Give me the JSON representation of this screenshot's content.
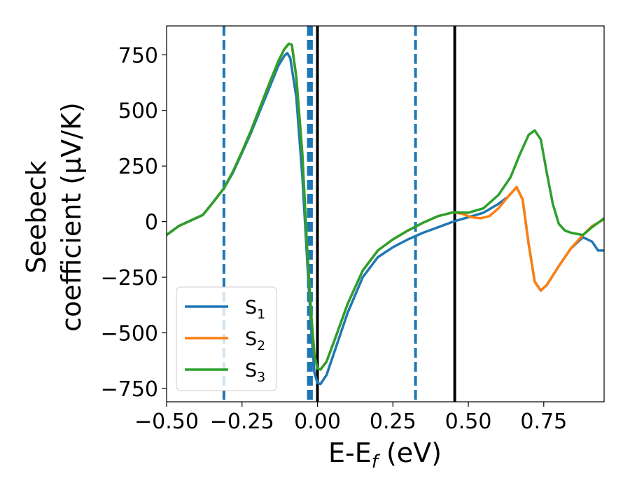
{
  "chart_data": {
    "type": "line",
    "xlabel": {
      "main": "E-E",
      "sub": "f",
      "unit": " (eV)"
    },
    "ylabel": {
      "line1": "Seebeck",
      "line2": "coefficient  (μV/K)"
    },
    "xlim": [
      -0.5,
      0.95
    ],
    "ylim": [
      -810,
      880
    ],
    "grid": false,
    "x_ticks": [
      -0.5,
      -0.25,
      0.0,
      0.25,
      0.5,
      0.75
    ],
    "x_tick_labels": [
      "−0.50",
      "−0.25",
      "0.00",
      "0.25",
      "0.50",
      "0.75"
    ],
    "y_ticks": [
      750,
      500,
      250,
      0,
      -250,
      -500,
      -750
    ],
    "y_tick_labels": [
      "750",
      "500",
      "250",
      "0",
      "−250",
      "−500",
      "−750"
    ],
    "legend": {
      "position": "lower-left"
    },
    "series": [
      {
        "name": "S",
        "sub": "1",
        "color": "#1f77b4",
        "points": [
          [
            -0.5,
            -60
          ],
          [
            -0.46,
            -20
          ],
          [
            -0.42,
            5
          ],
          [
            -0.38,
            30
          ],
          [
            -0.35,
            80
          ],
          [
            -0.31,
            150
          ],
          [
            -0.28,
            220
          ],
          [
            -0.25,
            310
          ],
          [
            -0.22,
            400
          ],
          [
            -0.19,
            500
          ],
          [
            -0.16,
            600
          ],
          [
            -0.13,
            700
          ],
          [
            -0.11,
            745
          ],
          [
            -0.1,
            758
          ],
          [
            -0.09,
            735
          ],
          [
            -0.07,
            560
          ],
          [
            -0.05,
            200
          ],
          [
            -0.035,
            -150
          ],
          [
            -0.02,
            -500
          ],
          [
            -0.01,
            -680
          ],
          [
            0.0,
            -725
          ],
          [
            0.01,
            -730
          ],
          [
            0.03,
            -690
          ],
          [
            0.06,
            -570
          ],
          [
            0.1,
            -410
          ],
          [
            0.15,
            -250
          ],
          [
            0.2,
            -160
          ],
          [
            0.25,
            -115
          ],
          [
            0.3,
            -80
          ],
          [
            0.35,
            -50
          ],
          [
            0.4,
            -25
          ],
          [
            0.45,
            0
          ],
          [
            0.5,
            20
          ],
          [
            0.55,
            40
          ],
          [
            0.6,
            80
          ],
          [
            0.63,
            110
          ],
          [
            0.66,
            155
          ],
          [
            0.68,
            100
          ],
          [
            0.7,
            -100
          ],
          [
            0.72,
            -270
          ],
          [
            0.74,
            -310
          ],
          [
            0.76,
            -285
          ],
          [
            0.8,
            -200
          ],
          [
            0.84,
            -120
          ],
          [
            0.88,
            -70
          ],
          [
            0.91,
            -90
          ],
          [
            0.93,
            -130
          ],
          [
            0.95,
            -130
          ]
        ]
      },
      {
        "name": "S",
        "sub": "2",
        "color": "#ff7f0e",
        "points": [
          [
            -0.5,
            -60
          ],
          [
            -0.46,
            -20
          ],
          [
            -0.42,
            5
          ],
          [
            -0.38,
            30
          ],
          [
            -0.35,
            80
          ],
          [
            -0.31,
            150
          ],
          [
            -0.28,
            225
          ],
          [
            -0.25,
            315
          ],
          [
            -0.22,
            410
          ],
          [
            -0.19,
            515
          ],
          [
            -0.16,
            620
          ],
          [
            -0.13,
            720
          ],
          [
            -0.11,
            775
          ],
          [
            -0.095,
            800
          ],
          [
            -0.085,
            795
          ],
          [
            -0.07,
            650
          ],
          [
            -0.05,
            300
          ],
          [
            -0.035,
            -100
          ],
          [
            -0.02,
            -430
          ],
          [
            -0.01,
            -600
          ],
          [
            0.0,
            -660
          ],
          [
            0.01,
            -665
          ],
          [
            0.03,
            -630
          ],
          [
            0.06,
            -520
          ],
          [
            0.1,
            -370
          ],
          [
            0.15,
            -220
          ],
          [
            0.2,
            -130
          ],
          [
            0.25,
            -80
          ],
          [
            0.3,
            -40
          ],
          [
            0.35,
            -5
          ],
          [
            0.4,
            25
          ],
          [
            0.45,
            42
          ],
          [
            0.48,
            35
          ],
          [
            0.51,
            20
          ],
          [
            0.54,
            15
          ],
          [
            0.57,
            25
          ],
          [
            0.6,
            60
          ],
          [
            0.63,
            110
          ],
          [
            0.66,
            155
          ],
          [
            0.68,
            100
          ],
          [
            0.7,
            -100
          ],
          [
            0.72,
            -270
          ],
          [
            0.74,
            -310
          ],
          [
            0.76,
            -285
          ],
          [
            0.8,
            -200
          ],
          [
            0.84,
            -120
          ],
          [
            0.88,
            -60
          ],
          [
            0.91,
            -20
          ],
          [
            0.95,
            10
          ]
        ]
      },
      {
        "name": "S",
        "sub": "3",
        "color": "#2ca02c",
        "points": [
          [
            -0.5,
            -60
          ],
          [
            -0.46,
            -20
          ],
          [
            -0.42,
            5
          ],
          [
            -0.38,
            30
          ],
          [
            -0.35,
            80
          ],
          [
            -0.31,
            150
          ],
          [
            -0.28,
            225
          ],
          [
            -0.25,
            315
          ],
          [
            -0.22,
            410
          ],
          [
            -0.19,
            515
          ],
          [
            -0.16,
            620
          ],
          [
            -0.13,
            720
          ],
          [
            -0.11,
            775
          ],
          [
            -0.095,
            800
          ],
          [
            -0.085,
            795
          ],
          [
            -0.07,
            650
          ],
          [
            -0.05,
            300
          ],
          [
            -0.035,
            -100
          ],
          [
            -0.02,
            -430
          ],
          [
            -0.01,
            -600
          ],
          [
            0.0,
            -660
          ],
          [
            0.01,
            -665
          ],
          [
            0.03,
            -630
          ],
          [
            0.06,
            -520
          ],
          [
            0.1,
            -370
          ],
          [
            0.15,
            -220
          ],
          [
            0.2,
            -130
          ],
          [
            0.25,
            -80
          ],
          [
            0.3,
            -40
          ],
          [
            0.35,
            -5
          ],
          [
            0.4,
            25
          ],
          [
            0.45,
            42
          ],
          [
            0.5,
            40
          ],
          [
            0.55,
            60
          ],
          [
            0.6,
            120
          ],
          [
            0.64,
            200
          ],
          [
            0.67,
            300
          ],
          [
            0.7,
            390
          ],
          [
            0.72,
            410
          ],
          [
            0.74,
            370
          ],
          [
            0.76,
            220
          ],
          [
            0.78,
            80
          ],
          [
            0.8,
            -10
          ],
          [
            0.82,
            -40
          ],
          [
            0.84,
            -50
          ],
          [
            0.86,
            -55
          ],
          [
            0.88,
            -60
          ],
          [
            0.91,
            -25
          ],
          [
            0.95,
            15
          ]
        ]
      }
    ],
    "vertical_lines": [
      {
        "x": -0.31,
        "style": "dashed",
        "color": "#1f77b4"
      },
      {
        "x": -0.03,
        "style": "dashed",
        "color": "#1f77b4"
      },
      {
        "x": -0.025,
        "style": "dashed",
        "color": "#1f77b4"
      },
      {
        "x": -0.02,
        "style": "dashed",
        "color": "#1f77b4"
      },
      {
        "x": 0.0,
        "style": "solid",
        "color": "#000000"
      },
      {
        "x": 0.325,
        "style": "dashed",
        "color": "#1f77b4"
      },
      {
        "x": 0.455,
        "style": "solid",
        "color": "#000000"
      }
    ]
  }
}
